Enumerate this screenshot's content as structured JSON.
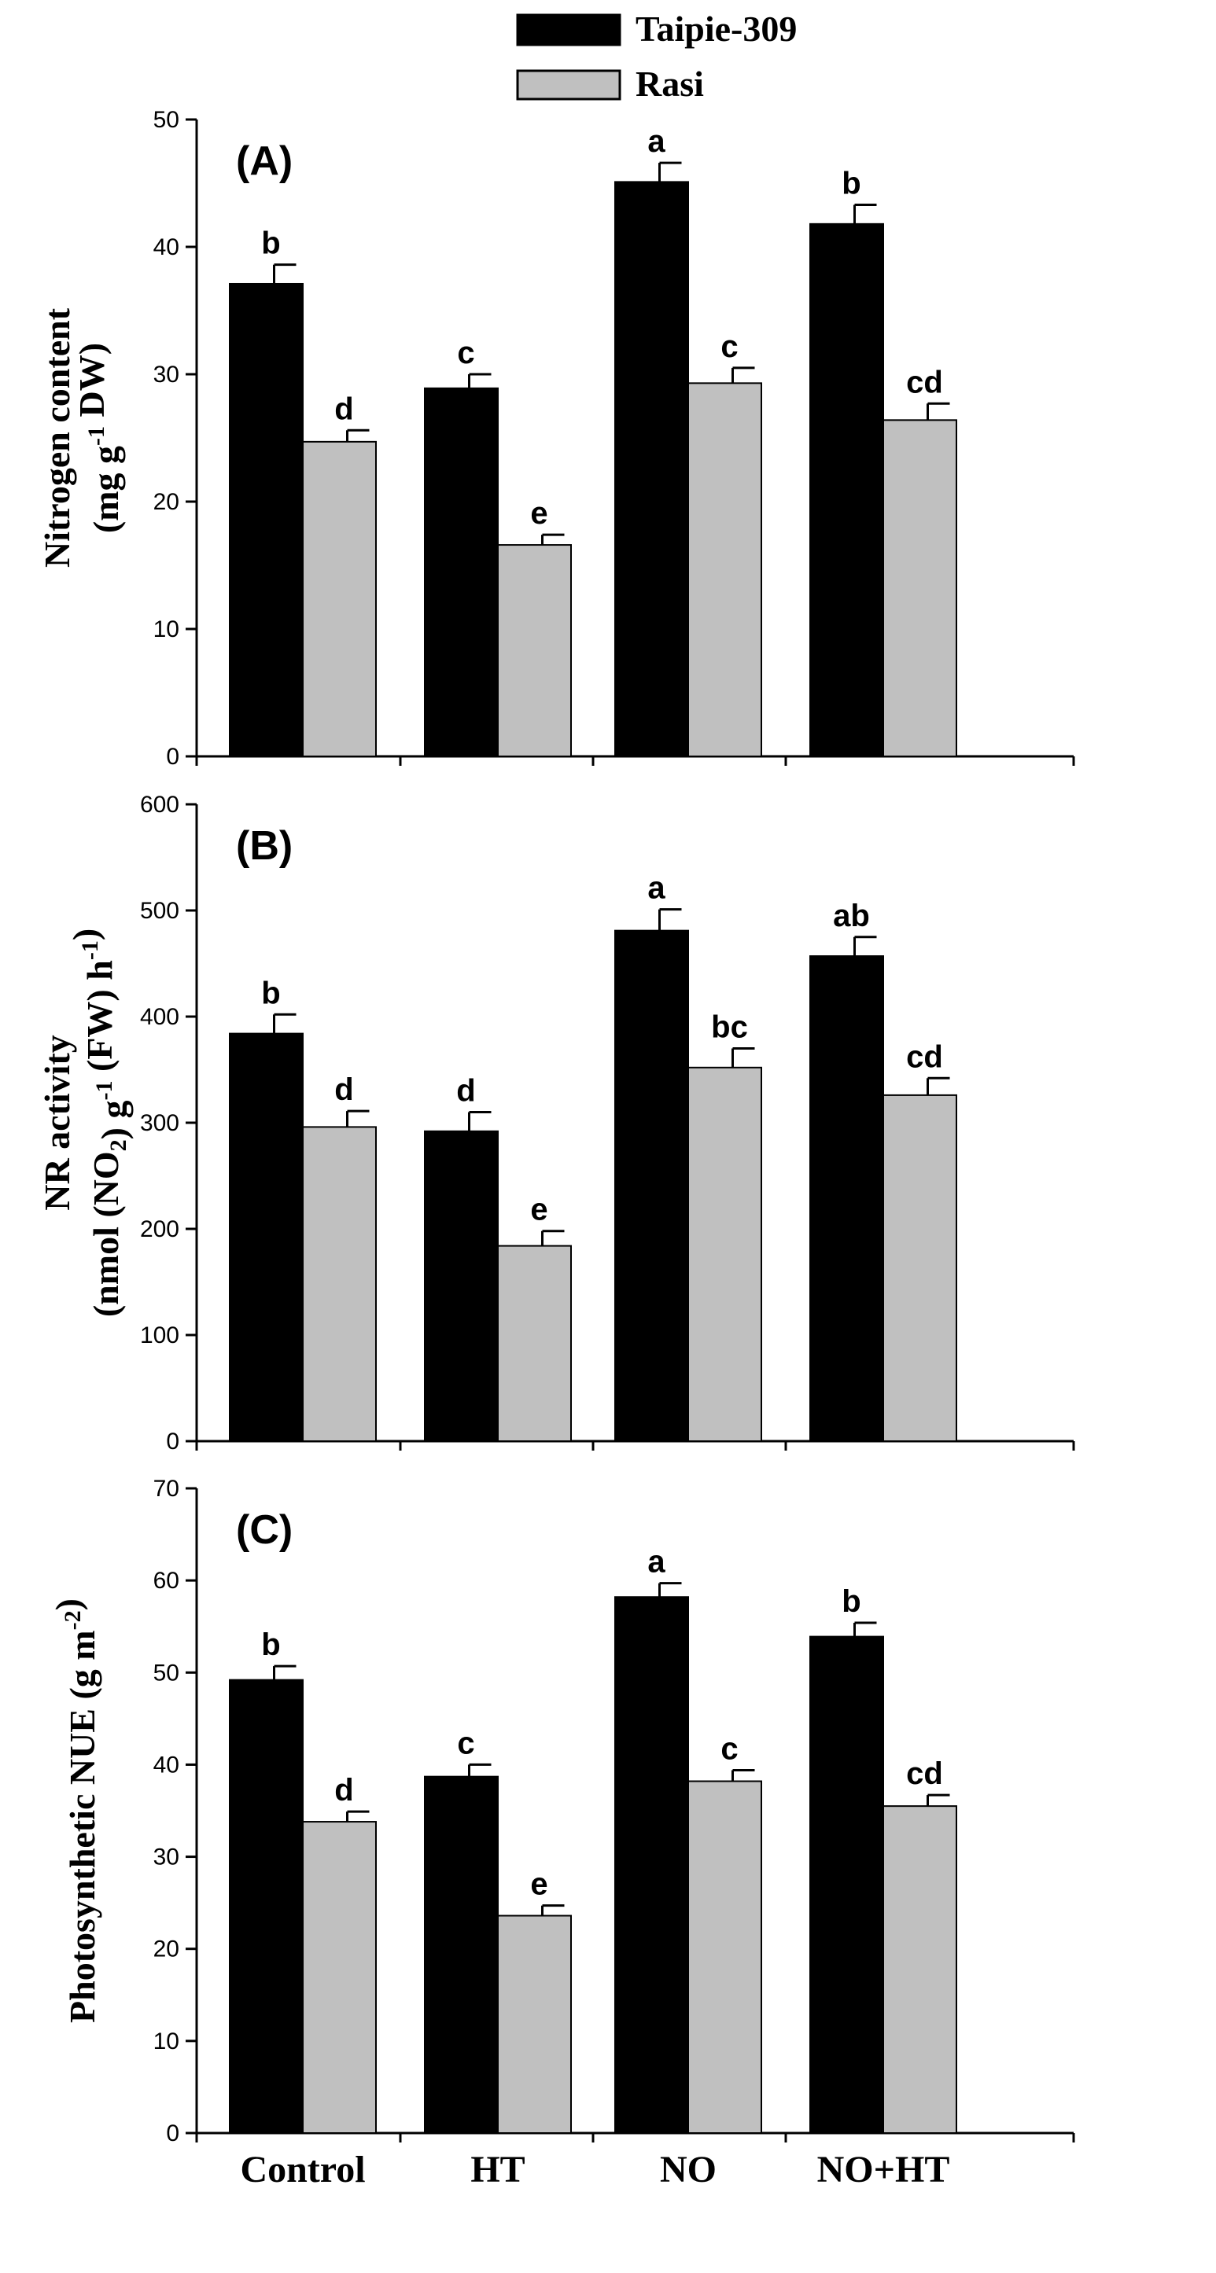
{
  "legend": [
    {
      "name": "Taipie-309",
      "color": "#000000"
    },
    {
      "name": "Rasi",
      "color": "#c0c0c0"
    }
  ],
  "categories": [
    "Control",
    "HT",
    "NO",
    "NO+HT"
  ],
  "chart_data": [
    {
      "type": "bar",
      "panel_label": "(A)",
      "ylabel_line1": "Nitrogen content",
      "ylabel_line2_parts": [
        {
          "text": "(mg g",
          "sup": false
        },
        {
          "text": "-1",
          "sup": true
        },
        {
          "text": " DW)",
          "sup": false
        }
      ],
      "ylim": [
        0,
        50
      ],
      "yticks": [
        0,
        10,
        20,
        30,
        40,
        50
      ],
      "categories": [
        "Control",
        "HT",
        "NO",
        "NO+HT"
      ],
      "series": [
        {
          "name": "Taipie-309",
          "values": [
            37.1,
            28.9,
            45.1,
            41.8
          ],
          "errors": [
            1.5,
            1.1,
            1.5,
            1.5
          ],
          "letters": [
            "b",
            "c",
            "a",
            "b"
          ]
        },
        {
          "name": "Rasi",
          "values": [
            24.7,
            16.6,
            29.3,
            26.4
          ],
          "errors": [
            0.9,
            0.8,
            1.2,
            1.3
          ],
          "letters": [
            "d",
            "e",
            "c",
            "cd"
          ]
        }
      ]
    },
    {
      "type": "bar",
      "panel_label": "(B)",
      "ylabel_line1": "NR activity",
      "ylabel_line2_parts": [
        {
          "text": "(nmol (NO",
          "sup": false
        },
        {
          "text": "2",
          "sub": true
        },
        {
          "text": ") g",
          "sup": false
        },
        {
          "text": "-1",
          "sup": true
        },
        {
          "text": " (FW) h",
          "sup": false
        },
        {
          "text": "-1",
          "sup": true
        },
        {
          "text": ")",
          "sup": false
        }
      ],
      "ylim": [
        0,
        600
      ],
      "yticks": [
        0,
        100,
        200,
        300,
        400,
        500,
        600
      ],
      "categories": [
        "Control",
        "HT",
        "NO",
        "NO+HT"
      ],
      "series": [
        {
          "name": "Taipie-309",
          "values": [
            384,
            292,
            481,
            457
          ],
          "errors": [
            18,
            18,
            20,
            18
          ],
          "letters": [
            "b",
            "d",
            "a",
            "ab"
          ]
        },
        {
          "name": "Rasi",
          "values": [
            296,
            184,
            352,
            326
          ],
          "errors": [
            15,
            14,
            18,
            16
          ],
          "letters": [
            "d",
            "e",
            "bc",
            "cd"
          ]
        }
      ]
    },
    {
      "type": "bar",
      "panel_label": "(C)",
      "ylabel_line1_parts": [
        {
          "text": "Photosynthetic NUE (g m",
          "sup": false
        },
        {
          "text": "-2",
          "sup": true
        },
        {
          "text": ")",
          "sup": false
        }
      ],
      "ylim": [
        0,
        70
      ],
      "yticks": [
        0,
        10,
        20,
        30,
        40,
        50,
        60,
        70
      ],
      "categories": [
        "Control",
        "HT",
        "NO",
        "NO+HT"
      ],
      "series": [
        {
          "name": "Taipie-309",
          "values": [
            49.2,
            38.7,
            58.2,
            53.9
          ],
          "errors": [
            1.5,
            1.3,
            1.5,
            1.5
          ],
          "letters": [
            "b",
            "c",
            "a",
            "b"
          ]
        },
        {
          "name": "Rasi",
          "values": [
            33.8,
            23.6,
            38.2,
            35.5
          ],
          "errors": [
            1.1,
            1.1,
            1.2,
            1.2
          ],
          "letters": [
            "d",
            "e",
            "c",
            "cd"
          ]
        }
      ]
    }
  ]
}
